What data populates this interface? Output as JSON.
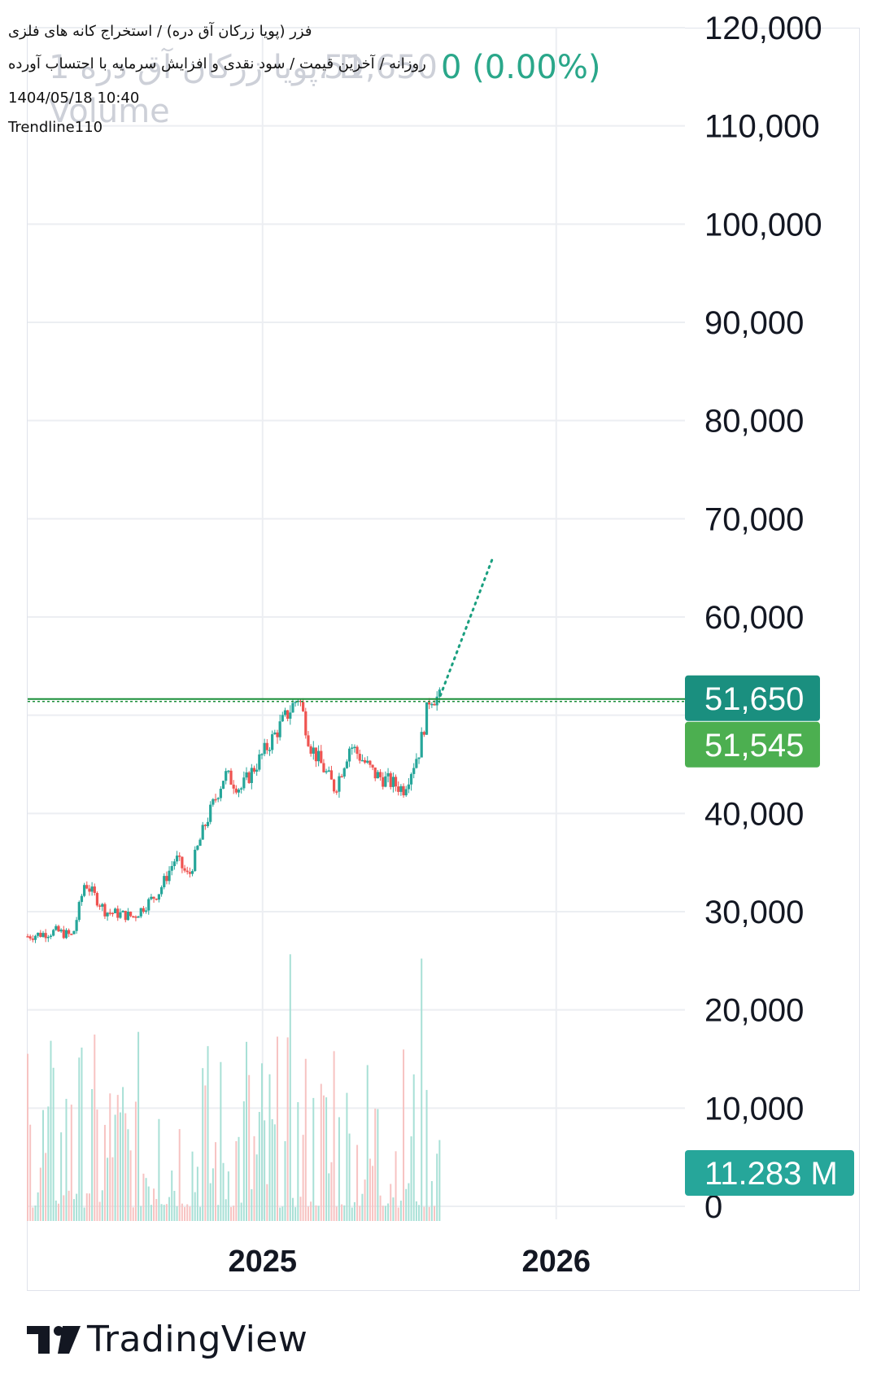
{
  "chart_data": {
    "type": "candlestick",
    "symbol": "فزر (پویا زرکان آق دره)",
    "exchange": "استخراج کانه های فلزی",
    "timeframe": "روزانه",
    "indicators_text": "آخرین قیمت / سود نقدی و افزایش سرمایه با احتساب آورده",
    "date": "1404/05/18 10:40",
    "author": "Trendline110",
    "ghost_title": "1 پویا زرکان آق دره، D",
    "ghost_price": "51,650",
    "change_text": "0 (0.00%)",
    "volume_label": "Volume",
    "y_axis": {
      "min": 0,
      "max": 120000,
      "ticks": [
        0,
        10000,
        20000,
        30000,
        40000,
        50000,
        60000,
        70000,
        80000,
        90000,
        100000,
        110000,
        120000
      ],
      "tick_labels": [
        "0",
        "10,000",
        "20,000",
        "30,000",
        "40,000",
        "",
        "60,000",
        "70,000",
        "80,000",
        "90,000",
        "100,000",
        "110,000",
        "120,000"
      ]
    },
    "x_axis": {
      "labels": [
        "2025",
        "2026"
      ],
      "range_start": "2024-03-15",
      "range_end": "2026-06-10"
    },
    "price_labels": [
      {
        "text": "51,650",
        "value": 51650,
        "color": "#1a8f7f"
      },
      {
        "text": "51,545",
        "value": 51545,
        "color": "#4caf50"
      }
    ],
    "volume_badge": {
      "text": "11.283 M",
      "color": "#26a69a"
    },
    "horizontal_line": {
      "value": 51650,
      "color": "#1b8f3a"
    },
    "trend_projection": {
      "from": {
        "date": "2025-08-10",
        "value": 52000
      },
      "to": {
        "date": "2025-10-14",
        "value": 66000
      },
      "color": "#1a9f7f"
    },
    "series_summary": [
      {
        "date": "2024-03-15",
        "close": 27500
      },
      {
        "date": "2024-04-20",
        "close": 28000
      },
      {
        "date": "2024-05-10",
        "close": 27500
      },
      {
        "date": "2024-05-25",
        "close": 33000
      },
      {
        "date": "2024-06-20",
        "close": 30000
      },
      {
        "date": "2024-07-25",
        "close": 29500
      },
      {
        "date": "2024-08-25",
        "close": 32000
      },
      {
        "date": "2024-09-15",
        "close": 35500
      },
      {
        "date": "2024-10-01",
        "close": 33500
      },
      {
        "date": "2024-10-20",
        "close": 38500
      },
      {
        "date": "2024-11-15",
        "close": 44000
      },
      {
        "date": "2024-12-05",
        "close": 42500
      },
      {
        "date": "2025-01-01",
        "close": 46000
      },
      {
        "date": "2025-02-15",
        "close": 52000
      },
      {
        "date": "2025-03-01",
        "close": 47000
      },
      {
        "date": "2025-04-01",
        "close": 42500
      },
      {
        "date": "2025-04-20",
        "close": 47000
      },
      {
        "date": "2025-05-20",
        "close": 44000
      },
      {
        "date": "2025-06-25",
        "close": 42500
      },
      {
        "date": "2025-07-15",
        "close": 46500
      },
      {
        "date": "2025-07-28",
        "close": 52000
      },
      {
        "date": "2025-08-10",
        "close": 51650
      }
    ],
    "colors": {
      "up": "#26a69a",
      "down": "#ef5350",
      "grid": "#eceef2"
    }
  },
  "brand": {
    "name": "TradingView"
  }
}
